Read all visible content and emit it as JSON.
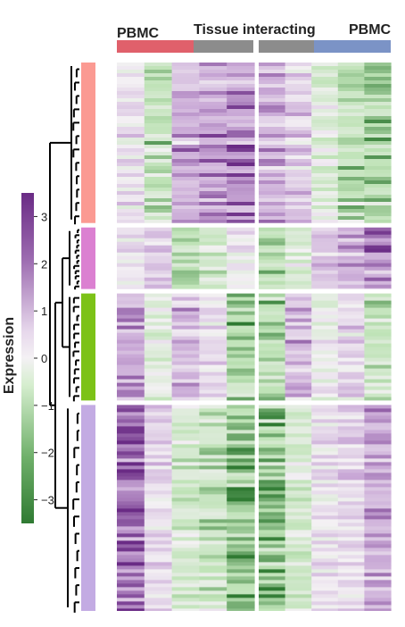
{
  "chart_data": {
    "type": "heatmap",
    "column_annotations": [
      {
        "text": "PBMC",
        "color": "#e0606b"
      },
      {
        "text": "Tissue interacting",
        "color": "#8c8c8c"
      },
      {
        "text": "PBMC",
        "color": "#7b93c6"
      }
    ],
    "legend": {
      "title": "Expression",
      "range": [
        -3.5,
        3.5
      ],
      "ticks": [
        {
          "value": 3,
          "label": "3"
        },
        {
          "value": 2,
          "label": "2"
        },
        {
          "value": 1,
          "label": "1"
        },
        {
          "value": 0,
          "label": "0"
        },
        {
          "value": -1,
          "label": "−1"
        },
        {
          "value": -2,
          "label": "−2"
        },
        {
          "value": -3,
          "label": "−3"
        }
      ],
      "colors": {
        "high": "#6a2b85",
        "mid": "#f4f1f4",
        "low": "#2f7a32"
      }
    },
    "row_clusters": [
      {
        "color": "#fb9a92",
        "fraction": 0.3
      },
      {
        "color": "#db80d1",
        "fraction": 0.115
      },
      {
        "color": "#7cc217",
        "fraction": 0.2
      },
      {
        "color": "#c3abe3",
        "fraction": 0.385
      }
    ],
    "column_groups": 2,
    "grid": false
  }
}
